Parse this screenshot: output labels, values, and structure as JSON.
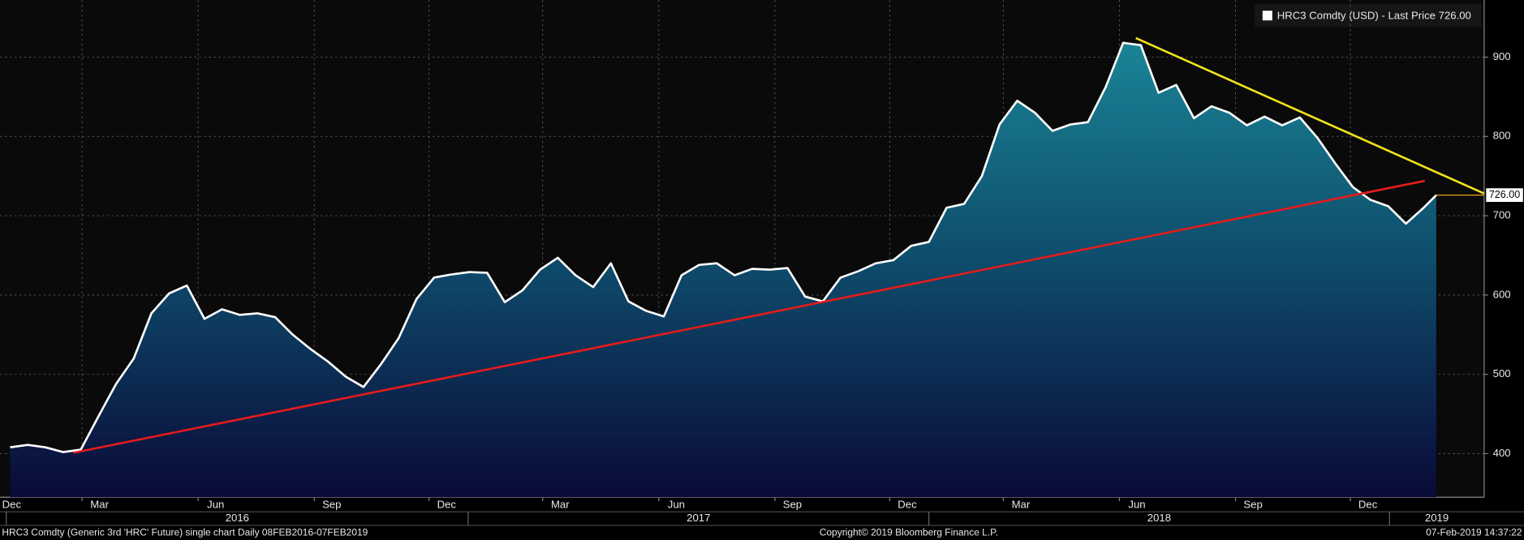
{
  "chart_data": {
    "type": "area",
    "series": [
      {
        "name": "HRC3 Comdty (USD) - Last Price 726.00",
        "color": "#ffffff",
        "values": [
          408,
          411,
          408,
          402,
          405,
          447,
          488,
          520,
          577,
          602,
          612,
          570,
          582,
          575,
          577,
          572,
          550,
          532,
          516,
          497,
          484,
          513,
          546,
          595,
          622,
          626,
          629,
          628,
          591,
          606,
          632,
          647,
          625,
          610,
          640,
          592,
          580,
          573,
          625,
          638,
          640,
          625,
          633,
          632,
          634,
          598,
          592,
          622,
          630,
          640,
          644,
          662,
          667,
          710,
          715,
          750,
          815,
          845,
          830,
          807,
          815,
          818,
          862,
          918,
          915,
          855,
          865,
          823,
          838,
          830,
          814,
          825,
          814,
          824,
          798,
          766,
          736,
          720,
          712,
          690,
          710,
          726
        ]
      }
    ],
    "x": [
      "2016-01-04",
      "2016-01-18",
      "2016-02-01",
      "2016-02-15",
      "2016-02-29",
      "2016-03-14",
      "2016-03-28",
      "2016-04-11",
      "2016-04-25",
      "2016-05-09",
      "2016-05-23",
      "2016-06-06",
      "2016-06-20",
      "2016-07-04",
      "2016-07-18",
      "2016-08-01",
      "2016-08-15",
      "2016-08-29",
      "2016-09-12",
      "2016-09-26",
      "2016-10-10",
      "2016-10-24",
      "2016-11-07",
      "2016-11-21",
      "2016-12-05",
      "2016-12-19",
      "2017-01-02",
      "2017-01-16",
      "2017-01-30",
      "2017-02-13",
      "2017-02-27",
      "2017-03-13",
      "2017-03-27",
      "2017-04-10",
      "2017-04-24",
      "2017-05-08",
      "2017-05-22",
      "2017-06-05",
      "2017-06-19",
      "2017-07-03",
      "2017-07-17",
      "2017-07-31",
      "2017-08-14",
      "2017-08-28",
      "2017-09-11",
      "2017-09-25",
      "2017-10-09",
      "2017-10-23",
      "2017-11-06",
      "2017-11-20",
      "2017-12-04",
      "2017-12-18",
      "2018-01-01",
      "2018-01-15",
      "2018-01-29",
      "2018-02-12",
      "2018-02-26",
      "2018-03-12",
      "2018-03-26",
      "2018-04-09",
      "2018-04-23",
      "2018-05-07",
      "2018-05-21",
      "2018-06-04",
      "2018-06-18",
      "2018-07-02",
      "2018-07-16",
      "2018-07-30",
      "2018-08-13",
      "2018-08-27",
      "2018-09-10",
      "2018-09-24",
      "2018-10-08",
      "2018-10-22",
      "2018-11-05",
      "2018-11-19",
      "2018-12-03",
      "2018-12-17",
      "2018-12-31",
      "2019-01-14",
      "2019-01-28",
      "2019-02-07"
    ],
    "xlim": [
      "2015-12-27",
      "2019-03-17"
    ],
    "xticks": [
      {
        "value": "2015-12-01",
        "label": "Dec"
      },
      {
        "value": "2016-03-01",
        "label": "Mar"
      },
      {
        "value": "2016-06-01",
        "label": "Jun"
      },
      {
        "value": "2016-09-01",
        "label": "Sep"
      },
      {
        "value": "2016-12-01",
        "label": "Dec"
      },
      {
        "value": "2017-03-01",
        "label": "Mar"
      },
      {
        "value": "2017-06-01",
        "label": "Jun"
      },
      {
        "value": "2017-09-01",
        "label": "Sep"
      },
      {
        "value": "2017-12-01",
        "label": "Dec"
      },
      {
        "value": "2018-03-01",
        "label": "Mar"
      },
      {
        "value": "2018-06-01",
        "label": "Jun"
      },
      {
        "value": "2018-09-01",
        "label": "Sep"
      },
      {
        "value": "2018-12-01",
        "label": "Dec"
      }
    ],
    "year_ticks": [
      {
        "value": "2016-01-01",
        "label": "2016"
      },
      {
        "value": "2017-01-01",
        "label": "2017"
      },
      {
        "value": "2018-01-01",
        "label": "2018"
      },
      {
        "value": "2019-01-01",
        "label": "2019"
      }
    ],
    "ylim": [
      345,
      972
    ],
    "yticks": [
      400,
      500,
      600,
      700,
      800,
      900
    ],
    "grid": true,
    "last_value_label": {
      "value": 726,
      "label": "726.00"
    },
    "trend_lines": [
      {
        "color": "#e41b1b",
        "x": [
          "2016-02-23",
          "2019-01-29"
        ],
        "y": [
          401,
          744
        ]
      },
      {
        "color": "#f2e21c",
        "x": [
          "2018-06-14",
          "2019-03-17"
        ],
        "y": [
          924,
          728
        ]
      }
    ],
    "footer_left": "HRC3 Comdty (Generic 3rd 'HRC' Future) single chart  Daily 08FEB2016-07FEB2019",
    "footer_center": "Copyright© 2019 Bloomberg Finance L.P.",
    "footer_right": "07-Feb-2019 14:37:22"
  }
}
